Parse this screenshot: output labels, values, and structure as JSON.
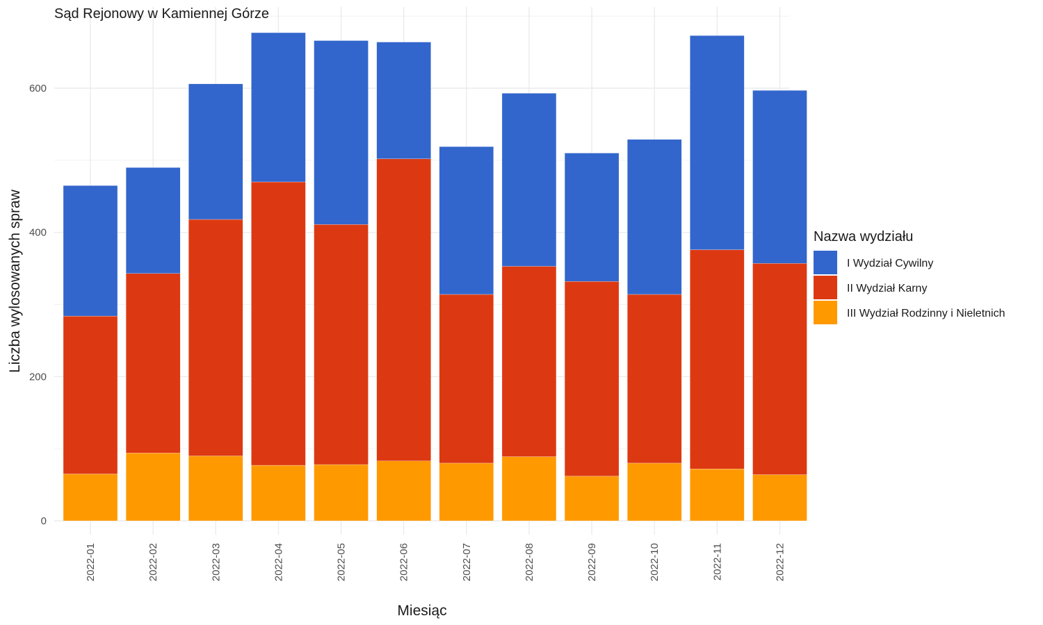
{
  "chart_data": {
    "type": "bar",
    "stacked": true,
    "title": "Sąd Rejonowy w Kamiennej Górze",
    "xlabel": "Miesiąc",
    "ylabel": "Liczba wylosowanych spraw",
    "ylim": [
      0,
      700
    ],
    "y_ticks": [
      "0",
      "200",
      "400",
      "600"
    ],
    "grid": true,
    "legend_title": "Nazwa wydziału",
    "legend_position": "right",
    "categories": [
      "2022-01",
      "2022-02",
      "2022-03",
      "2022-04",
      "2022-05",
      "2022-06",
      "2022-07",
      "2022-08",
      "2022-09",
      "2022-10",
      "2022-11",
      "2022-12"
    ],
    "series": [
      {
        "name": "III Wydział Rodzinny i Nieletnich",
        "color": "#FF9900",
        "values": [
          65,
          94,
          90,
          77,
          78,
          83,
          80,
          89,
          62,
          80,
          72,
          64
        ]
      },
      {
        "name": "II Wydział Karny",
        "color": "#DC3912",
        "values": [
          219,
          249,
          328,
          393,
          333,
          419,
          234,
          264,
          270,
          234,
          304,
          293
        ]
      },
      {
        "name": "I Wydział Cywilny",
        "color": "#3366CC",
        "values": [
          181,
          147,
          188,
          207,
          255,
          162,
          205,
          240,
          178,
          215,
          297,
          240
        ]
      }
    ],
    "legend_order": [
      "I Wydział Cywilny",
      "II Wydział Karny",
      "III Wydział Rodzinny i Nieletnich"
    ]
  }
}
